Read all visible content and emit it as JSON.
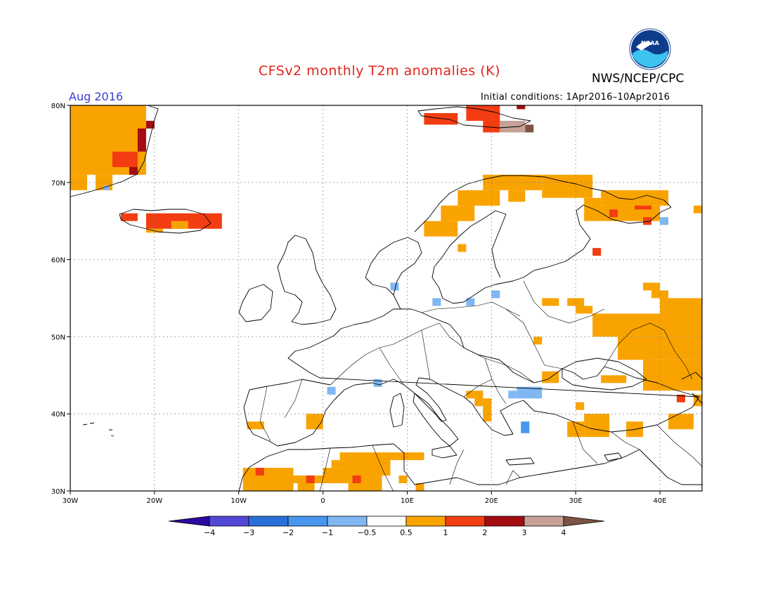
{
  "title": "CFSv2 monthly T2m anomalies (K)",
  "title_color": "#e0251b",
  "agency": "NWS/NCEP/CPC",
  "logo_text": "NOAA",
  "month_label": "Aug 2016",
  "month_color": "#3b3bd8",
  "ic_prefix": "Initial conditions:",
  "ic_range": "1Apr2016–10Apr2016",
  "map": {
    "lon_range": [
      -30,
      45
    ],
    "lat_range": [
      30,
      80
    ],
    "lon_ticks": [
      {
        "value": -30,
        "label": "30W"
      },
      {
        "value": -20,
        "label": "20W"
      },
      {
        "value": -10,
        "label": "10W"
      },
      {
        "value": 0,
        "label": "0"
      },
      {
        "value": 10,
        "label": "10E"
      },
      {
        "value": 20,
        "label": "20E"
      },
      {
        "value": 30,
        "label": "30E"
      },
      {
        "value": 40,
        "label": "40E"
      }
    ],
    "lat_ticks": [
      {
        "value": 80,
        "label": "80N"
      },
      {
        "value": 70,
        "label": "70N"
      },
      {
        "value": 60,
        "label": "60N"
      },
      {
        "value": 50,
        "label": "50N"
      },
      {
        "value": 40,
        "label": "40N"
      },
      {
        "value": 30,
        "label": "30N"
      }
    ],
    "grid": "dotted"
  },
  "colorbar": {
    "colors": [
      "#2a0aa0",
      "#5248d6",
      "#2a6fd8",
      "#4896ee",
      "#7fb7f2",
      "#ffffff",
      "#f9a300",
      "#f23d12",
      "#a30c10",
      "#c6a196",
      "#7c5342"
    ],
    "labels": [
      "-4",
      "-3",
      "-2",
      "-1",
      "-0.5",
      "0.5",
      "1",
      "2",
      "3",
      "4"
    ]
  },
  "anomaly_cells": [
    {
      "lon": -30,
      "lat": 71,
      "w": 9,
      "h": 9,
      "color": "#f9a300"
    },
    {
      "lon": -30,
      "lat": 69,
      "w": 2,
      "h": 2,
      "color": "#f9a300"
    },
    {
      "lon": -27,
      "lat": 69,
      "w": 2,
      "h": 2,
      "color": "#f9a300"
    },
    {
      "lon": -26,
      "lat": 69,
      "w": 0.6,
      "h": 0.6,
      "color": "#7fb7f2"
    },
    {
      "lon": -25,
      "lat": 72,
      "w": 3,
      "h": 2,
      "color": "#f23d12"
    },
    {
      "lon": -23,
      "lat": 71,
      "w": 1,
      "h": 1,
      "color": "#a30c10"
    },
    {
      "lon": -22,
      "lat": 74,
      "w": 1,
      "h": 3,
      "color": "#a30c10"
    },
    {
      "lon": -21,
      "lat": 77,
      "w": 1,
      "h": 1,
      "color": "#a30c10"
    },
    {
      "lon": -24,
      "lat": 65,
      "w": 2,
      "h": 1,
      "color": "#f23d12"
    },
    {
      "lon": -21,
      "lat": 64,
      "w": 9,
      "h": 2,
      "color": "#f23d12"
    },
    {
      "lon": -18,
      "lat": 64,
      "w": 2,
      "h": 1,
      "color": "#f9a300"
    },
    {
      "lon": -21,
      "lat": 63.5,
      "w": 2,
      "h": 0.5,
      "color": "#f9a300"
    },
    {
      "lon": 12,
      "lat": 77.5,
      "w": 4,
      "h": 1.5,
      "color": "#f23d12"
    },
    {
      "lon": 17,
      "lat": 78,
      "w": 4,
      "h": 2,
      "color": "#f23d12"
    },
    {
      "lon": 19,
      "lat": 76.5,
      "w": 2,
      "h": 1.5,
      "color": "#f23d12"
    },
    {
      "lon": 21,
      "lat": 76.5,
      "w": 3,
      "h": 1.5,
      "color": "#c6a196"
    },
    {
      "lon": 24,
      "lat": 76.5,
      "w": 1,
      "h": 1,
      "color": "#7c5342"
    },
    {
      "lon": 23,
      "lat": 79.5,
      "w": 1,
      "h": 0.5,
      "color": "#a30c10"
    },
    {
      "lon": 12,
      "lat": 63,
      "w": 4,
      "h": 2,
      "color": "#f9a300"
    },
    {
      "lon": 14,
      "lat": 65,
      "w": 4,
      "h": 2,
      "color": "#f9a300"
    },
    {
      "lon": 16,
      "lat": 67,
      "w": 5,
      "h": 2,
      "color": "#f9a300"
    },
    {
      "lon": 19,
      "lat": 69,
      "w": 7,
      "h": 2,
      "color": "#f9a300"
    },
    {
      "lon": 26,
      "lat": 68,
      "w": 6,
      "h": 3,
      "color": "#f9a300"
    },
    {
      "lon": 22,
      "lat": 67.5,
      "w": 2,
      "h": 1.5,
      "color": "#f9a300"
    },
    {
      "lon": 31,
      "lat": 67,
      "w": 2,
      "h": 1,
      "color": "#f9a300"
    },
    {
      "lon": 33,
      "lat": 67,
      "w": 8,
      "h": 2,
      "color": "#f9a300"
    },
    {
      "lon": 31,
      "lat": 65,
      "w": 4,
      "h": 2,
      "color": "#f9a300"
    },
    {
      "lon": 35,
      "lat": 65,
      "w": 5,
      "h": 2,
      "color": "#f9a300"
    },
    {
      "lon": 37,
      "lat": 66.5,
      "w": 2,
      "h": 0.5,
      "color": "#f23d12"
    },
    {
      "lon": 34,
      "lat": 65.5,
      "w": 1,
      "h": 1,
      "color": "#f23d12"
    },
    {
      "lon": 38,
      "lat": 64.5,
      "w": 1,
      "h": 1,
      "color": "#f23d12"
    },
    {
      "lon": 40,
      "lat": 64.5,
      "w": 1,
      "h": 1,
      "color": "#7fb7f2"
    },
    {
      "lon": 44,
      "lat": 66,
      "w": 1,
      "h": 1,
      "color": "#f9a300"
    },
    {
      "lon": 32,
      "lat": 60.5,
      "w": 1,
      "h": 1,
      "color": "#f23d12"
    },
    {
      "lon": 16,
      "lat": 61,
      "w": 1,
      "h": 1,
      "color": "#f9a300"
    },
    {
      "lon": 38,
      "lat": 56,
      "w": 2,
      "h": 1,
      "color": "#f9a300"
    },
    {
      "lon": 39,
      "lat": 55,
      "w": 2,
      "h": 1,
      "color": "#f9a300"
    },
    {
      "lon": 26,
      "lat": 54,
      "w": 2,
      "h": 1,
      "color": "#f9a300"
    },
    {
      "lon": 29,
      "lat": 54,
      "w": 2,
      "h": 1,
      "color": "#f9a300"
    },
    {
      "lon": 30,
      "lat": 53,
      "w": 2,
      "h": 1,
      "color": "#f9a300"
    },
    {
      "lon": 32,
      "lat": 50,
      "w": 13,
      "h": 3,
      "color": "#f9a300"
    },
    {
      "lon": 35,
      "lat": 47,
      "w": 10,
      "h": 3,
      "color": "#f9a300"
    },
    {
      "lon": 38,
      "lat": 43,
      "w": 7,
      "h": 4,
      "color": "#f9a300"
    },
    {
      "lon": 40,
      "lat": 53,
      "w": 5,
      "h": 2,
      "color": "#f9a300"
    },
    {
      "lon": 33,
      "lat": 44,
      "w": 3,
      "h": 1,
      "color": "#f9a300"
    },
    {
      "lon": 25,
      "lat": 49,
      "w": 1,
      "h": 1,
      "color": "#f9a300"
    },
    {
      "lon": 26,
      "lat": 44,
      "w": 2,
      "h": 1.5,
      "color": "#f9a300"
    },
    {
      "lon": 44,
      "lat": 41,
      "w": 1,
      "h": 1.5,
      "color": "#f9a300"
    },
    {
      "lon": 42,
      "lat": 41.5,
      "w": 1,
      "h": 1,
      "color": "#f23d12"
    },
    {
      "lon": 41,
      "lat": 38,
      "w": 3,
      "h": 2,
      "color": "#f9a300"
    },
    {
      "lon": 29,
      "lat": 37,
      "w": 2,
      "h": 2,
      "color": "#f9a300"
    },
    {
      "lon": 31,
      "lat": 37,
      "w": 3,
      "h": 3,
      "color": "#f9a300"
    },
    {
      "lon": 36,
      "lat": 37,
      "w": 2,
      "h": 2,
      "color": "#f9a300"
    },
    {
      "lon": 30,
      "lat": 40.5,
      "w": 1,
      "h": 1,
      "color": "#f9a300"
    },
    {
      "lon": 18,
      "lat": 41,
      "w": 1,
      "h": 2,
      "color": "#f9a300"
    },
    {
      "lon": 19,
      "lat": 39,
      "w": 1,
      "h": 3,
      "color": "#f9a300"
    },
    {
      "lon": 17,
      "lat": 42,
      "w": 1,
      "h": 1,
      "color": "#f9a300"
    },
    {
      "lon": 23,
      "lat": 42,
      "w": 3,
      "h": 1.5,
      "color": "#7fb7f2"
    },
    {
      "lon": 22,
      "lat": 42,
      "w": 1,
      "h": 1,
      "color": "#7fb7f2"
    },
    {
      "lon": 23.5,
      "lat": 37.5,
      "w": 1,
      "h": 1.5,
      "color": "#4896ee"
    },
    {
      "lon": 24,
      "lat": 42.5,
      "w": 1.5,
      "h": 1,
      "color": "#7fb7f2"
    },
    {
      "lon": 8,
      "lat": 56,
      "w": 1,
      "h": 1,
      "color": "#7fb7f2"
    },
    {
      "lon": 13,
      "lat": 54,
      "w": 1,
      "h": 1,
      "color": "#7fb7f2"
    },
    {
      "lon": 17,
      "lat": 54,
      "w": 1,
      "h": 1,
      "color": "#7fb7f2"
    },
    {
      "lon": 20,
      "lat": 55,
      "w": 1,
      "h": 1,
      "color": "#7fb7f2"
    },
    {
      "lon": 0.5,
      "lat": 42.5,
      "w": 1,
      "h": 1,
      "color": "#7fb7f2"
    },
    {
      "lon": 6,
      "lat": 43.5,
      "w": 1,
      "h": 1,
      "color": "#7fb7f2"
    },
    {
      "lon": -9,
      "lat": 38,
      "w": 2,
      "h": 1,
      "color": "#f9a300"
    },
    {
      "lon": -2,
      "lat": 38,
      "w": 2,
      "h": 2,
      "color": "#f9a300"
    },
    {
      "lon": 2,
      "lat": 34,
      "w": 10,
      "h": 1,
      "color": "#f9a300"
    },
    {
      "lon": 1,
      "lat": 33,
      "w": 5,
      "h": 1,
      "color": "#f9a300"
    },
    {
      "lon": 0,
      "lat": 32,
      "w": 6,
      "h": 1,
      "color": "#f9a300"
    },
    {
      "lon": -1,
      "lat": 31,
      "w": 4,
      "h": 1,
      "color": "#f9a300"
    },
    {
      "lon": 3,
      "lat": 30,
      "w": 4,
      "h": 3,
      "color": "#f9a300"
    },
    {
      "lon": 5,
      "lat": 32,
      "w": 3,
      "h": 2,
      "color": "#f9a300"
    },
    {
      "lon": -9.5,
      "lat": 30,
      "w": 6,
      "h": 3,
      "color": "#f9a300"
    },
    {
      "lon": -4,
      "lat": 31,
      "w": 3,
      "h": 1,
      "color": "#f9a300"
    },
    {
      "lon": -3,
      "lat": 30,
      "w": 2,
      "h": 1,
      "color": "#f9a300"
    },
    {
      "lon": -8,
      "lat": 32,
      "w": 1,
      "h": 1,
      "color": "#f23d12"
    },
    {
      "lon": -2,
      "lat": 31,
      "w": 1,
      "h": 1,
      "color": "#f23d12"
    },
    {
      "lon": 3.5,
      "lat": 31,
      "w": 1,
      "h": 1,
      "color": "#f23d12"
    },
    {
      "lon": 9,
      "lat": 31,
      "w": 1,
      "h": 1,
      "color": "#f9a300"
    },
    {
      "lon": 11,
      "lat": 30,
      "w": 1,
      "h": 1,
      "color": "#f9a300"
    }
  ]
}
